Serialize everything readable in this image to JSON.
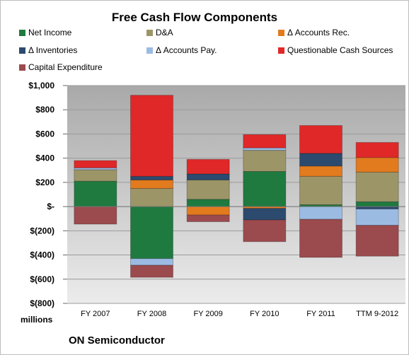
{
  "chart_data": {
    "type": "bar",
    "stacked": true,
    "title": "Free Cash Flow Components",
    "categories": [
      "FY 2007",
      "FY 2008",
      "FY 2009",
      "FY 2010",
      "FY 2011",
      "TTM 9-2012"
    ],
    "ylim": [
      -800,
      1000
    ],
    "yticks": [
      {
        "value": 1000,
        "label": "$1,000"
      },
      {
        "value": 800,
        "label": "$800"
      },
      {
        "value": 600,
        "label": "$600"
      },
      {
        "value": 400,
        "label": "$400"
      },
      {
        "value": 200,
        "label": "$200"
      },
      {
        "value": 0,
        "label": "$-"
      },
      {
        "value": -200,
        "label": "$(200)"
      },
      {
        "value": -400,
        "label": "$(400)"
      },
      {
        "value": -600,
        "label": "$(600)"
      },
      {
        "value": -800,
        "label": "$(800)"
      }
    ],
    "units": "millions",
    "grid": true,
    "legend_position": "top",
    "series": [
      {
        "name": "Net Income",
        "color": "#1f7a3f",
        "values": [
          210,
          -430,
          60,
          290,
          15,
          40
        ]
      },
      {
        "name": "D&A",
        "color": "#9c9568",
        "values": [
          95,
          150,
          160,
          175,
          235,
          245
        ]
      },
      {
        "name": "Δ Accounts Rec.",
        "color": "#e27a1e",
        "values": [
          0,
          70,
          -70,
          -15,
          85,
          120
        ]
      },
      {
        "name": "Δ Inventories",
        "color": "#2b4a6e",
        "values": [
          0,
          30,
          50,
          -95,
          105,
          -20
        ]
      },
      {
        "name": "Δ Accounts Pay.",
        "color": "#9cbbe3",
        "values": [
          15,
          -55,
          0,
          20,
          -105,
          -135
        ]
      },
      {
        "name": "Questionable Cash Sources",
        "color": "#e02828",
        "values": [
          60,
          670,
          120,
          110,
          230,
          125
        ]
      },
      {
        "name": "Capital Expenditure",
        "color": "#9b4a4e",
        "values": [
          -145,
          -100,
          -55,
          -180,
          -315,
          -255
        ]
      }
    ]
  },
  "footer": {
    "company": "ON Semiconductor"
  }
}
